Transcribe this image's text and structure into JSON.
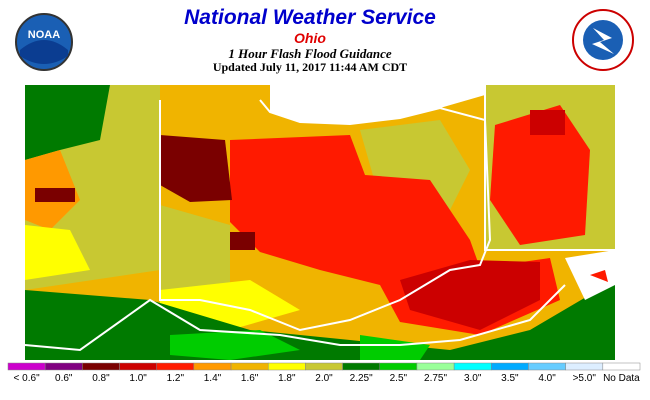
{
  "header": {
    "title": "National Weather Service",
    "state": "Ohio",
    "product": "1 Hour Flash Flood Guidance",
    "updated": "Updated July 11, 2017 11:44 AM CDT",
    "logo_left": "NOAA"
  },
  "legend": [
    {
      "label": "< 0.6\"",
      "color": "#cc00cc"
    },
    {
      "label": "0.6\"",
      "color": "#800080"
    },
    {
      "label": "0.8\"",
      "color": "#7a0000"
    },
    {
      "label": "1.0\"",
      "color": "#cc0000"
    },
    {
      "label": "1.2\"",
      "color": "#ff1a00"
    },
    {
      "label": "1.4\"",
      "color": "#ff9900"
    },
    {
      "label": "1.6\"",
      "color": "#f0b400"
    },
    {
      "label": "1.8\"",
      "color": "#ffff00"
    },
    {
      "label": "2.0\"",
      "color": "#c8c832"
    },
    {
      "label": "2.25\"",
      "color": "#007a00"
    },
    {
      "label": "2.5\"",
      "color": "#00cc00"
    },
    {
      "label": "2.75\"",
      "color": "#99ff99"
    },
    {
      "label": "3.0\"",
      "color": "#00ffff"
    },
    {
      "label": "3.5\"",
      "color": "#00aaff"
    },
    {
      "label": "4.0\"",
      "color": "#66ccff"
    },
    {
      "label": ">5.0\"",
      "color": "#ddeeff"
    },
    {
      "label": "No Data",
      "color": "#ffffff"
    }
  ]
}
